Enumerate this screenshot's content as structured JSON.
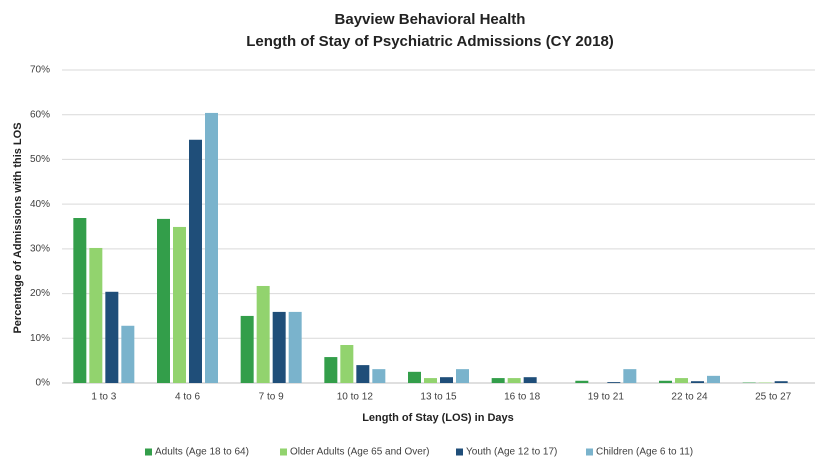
{
  "chart_data": {
    "type": "bar",
    "title": [
      "Bayview Behavioral Health",
      "Length of Stay of Psychiatric Admissions (CY 2018)"
    ],
    "x_label": "Length of Stay (LOS) in Days",
    "y_label": "Percentage of Admissions with this LOS",
    "categories": [
      "1 to 3",
      "4 to 6",
      "7 to 9",
      "10 to 12",
      "13 to 15",
      "16 to 18",
      "19 to 21",
      "22 to 24",
      "25 to 27"
    ],
    "series": [
      {
        "name": "Adults (Age 18 to 64)",
        "color": "#339e4a",
        "values": [
          36.9,
          36.7,
          15.0,
          5.8,
          2.5,
          1.1,
          0.5,
          0.5,
          0.1
        ]
      },
      {
        "name": "Older Adults (Age 65 and Over)",
        "color": "#92d36e",
        "values": [
          30.2,
          34.9,
          21.7,
          8.5,
          1.1,
          1.1,
          0,
          1.1,
          0.1
        ]
      },
      {
        "name": "Youth (Age 12 to 17)",
        "color": "#1f4e79",
        "values": [
          20.4,
          54.4,
          15.9,
          4.0,
          1.3,
          1.3,
          0.2,
          0.4,
          0.4
        ]
      },
      {
        "name": "Children (Age 6 to 11)",
        "color": "#7ab3cc",
        "values": [
          12.8,
          60.4,
          15.9,
          3.1,
          3.1,
          0,
          3.1,
          1.6,
          0
        ]
      }
    ],
    "ylim": [
      0,
      70
    ],
    "yticks": [
      {
        "value": 0,
        "label": "0%"
      },
      {
        "value": 10,
        "label": "10%"
      },
      {
        "value": 20,
        "label": "20%"
      },
      {
        "value": 30,
        "label": "30%"
      },
      {
        "value": 40,
        "label": "40%"
      },
      {
        "value": 50,
        "label": "50%"
      },
      {
        "value": 60,
        "label": "60%"
      },
      {
        "value": 70,
        "label": "70%"
      }
    ],
    "grid": true,
    "legend": "bottom"
  }
}
